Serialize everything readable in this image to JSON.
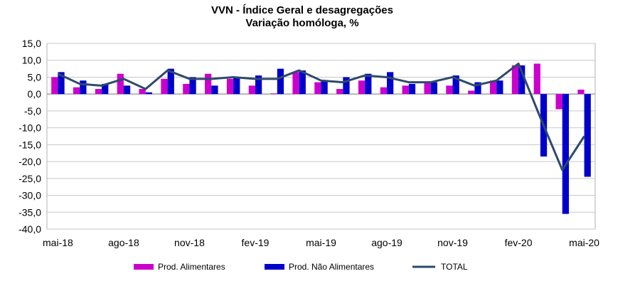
{
  "chart_data": {
    "type": "bar",
    "title": "VVN - Índice Geral e desagregações",
    "subtitle": "Variação homóloga, %",
    "xlabel": "",
    "ylabel": "",
    "ylim": [
      -40,
      15
    ],
    "yticks": [
      "15,0",
      "10,0",
      "5,0",
      "0,0",
      "-5,0",
      "-10,0",
      "-15,0",
      "-20,0",
      "-25,0",
      "-30,0",
      "-35,0",
      "-40,0"
    ],
    "categories": [
      "mai-18",
      "jun-18",
      "jul-18",
      "ago-18",
      "set-18",
      "out-18",
      "nov-18",
      "dez-18",
      "jan-19",
      "fev-19",
      "mar-19",
      "abr-19",
      "mai-19",
      "jun-19",
      "jul-19",
      "ago-19",
      "set-19",
      "out-19",
      "nov-19",
      "dez-19",
      "jan-20",
      "fev-20",
      "mar-20",
      "abr-20",
      "mai-20"
    ],
    "x_tick_labels": [
      "mai-18",
      "ago-18",
      "nov-18",
      "fev-19",
      "mai-19",
      "ago-19",
      "nov-19",
      "fev-20",
      "mai-20"
    ],
    "x_tick_indices": [
      0,
      3,
      6,
      9,
      12,
      15,
      18,
      21,
      24
    ],
    "legend_position": "bottom",
    "series": [
      {
        "name": "Prod. Alimentares",
        "kind": "bar",
        "color": "#cc00cc",
        "values": [
          5.0,
          2.0,
          1.5,
          6.0,
          1.5,
          4.5,
          3.0,
          6.0,
          4.5,
          2.5,
          0.2,
          6.5,
          3.5,
          1.5,
          4.0,
          2.0,
          2.5,
          3.5,
          2.5,
          1.0,
          4.0,
          8.5,
          9.0,
          -4.5,
          1.3
        ]
      },
      {
        "name": "Prod. Não Alimentares",
        "kind": "bar",
        "color": "#0000cc",
        "values": [
          6.5,
          4.0,
          3.0,
          2.5,
          0.5,
          7.5,
          5.0,
          2.5,
          5.0,
          5.5,
          7.5,
          7.0,
          4.0,
          5.0,
          6.0,
          6.5,
          3.0,
          3.5,
          5.5,
          3.5,
          4.0,
          8.5,
          -18.5,
          -35.5,
          -24.5
        ]
      },
      {
        "name": "TOTAL",
        "kind": "line",
        "color": "#2e4a6b",
        "values": [
          6.0,
          3.0,
          2.5,
          4.5,
          1.5,
          7.0,
          4.5,
          4.5,
          5.0,
          4.5,
          4.5,
          7.0,
          4.0,
          3.5,
          5.5,
          5.0,
          3.5,
          3.5,
          5.0,
          2.5,
          4.0,
          9.0,
          -7.0,
          -22.5,
          -12.5
        ]
      }
    ]
  }
}
